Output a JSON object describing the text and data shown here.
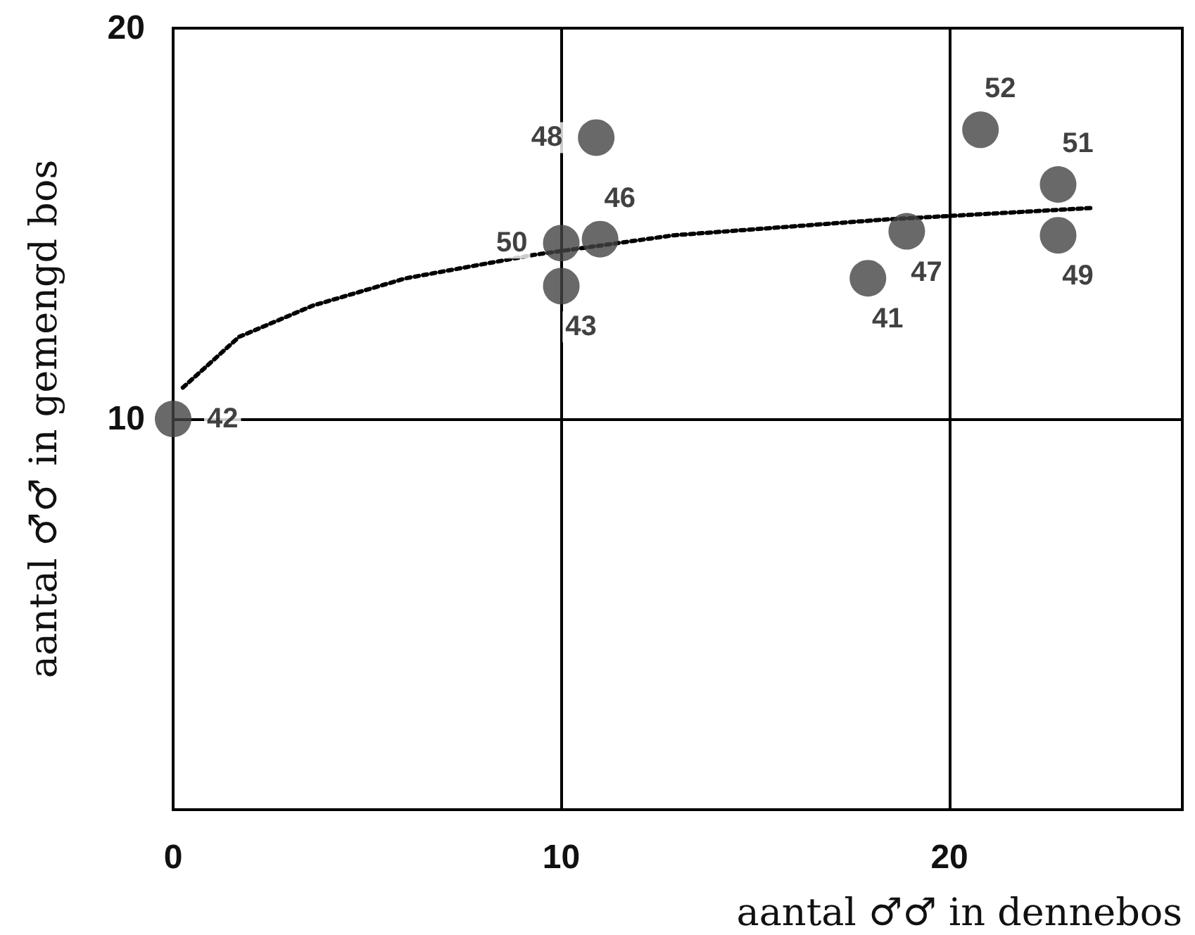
{
  "chart_data": {
    "type": "scatter",
    "xlabel": "aantal ♂♂ in dennebos",
    "ylabel": "aantal ♂♂ in gemengd bos",
    "xlim": [
      0,
      26
    ],
    "ylim": [
      0,
      20
    ],
    "xticks": [
      0,
      10,
      20
    ],
    "yticks": [
      10,
      20
    ],
    "grid": true,
    "marker": "circle",
    "series": [
      {
        "color": "#444444",
        "x": [
          0,
          10.9,
          10,
          11,
          10,
          20.8,
          22.8,
          18.9,
          17.9,
          22.8
        ],
        "values": [
          10,
          17.2,
          14.5,
          14.6,
          13.4,
          17.4,
          16.0,
          14.8,
          13.6,
          14.7
        ]
      },
      {
        "type": "line",
        "line_style": "dotted",
        "marker": "none",
        "color": "#000000",
        "x": [
          0.25,
          1.7,
          3.6,
          6.0,
          9.3,
          12.9,
          18.3,
          23.7
        ],
        "values": [
          10.8,
          12.1,
          12.9,
          13.6,
          14.2,
          14.7,
          15.1,
          15.4
        ]
      }
    ],
    "annotations": [
      {
        "text": "42",
        "x": 0,
        "y": 10
      },
      {
        "text": "48",
        "x": 10.9,
        "y": 17.2
      },
      {
        "text": "50",
        "x": 10,
        "y": 14.5
      },
      {
        "text": "46",
        "x": 11,
        "y": 14.6
      },
      {
        "text": "43",
        "x": 10,
        "y": 13.4
      },
      {
        "text": "52",
        "x": 20.8,
        "y": 17.4
      },
      {
        "text": "51",
        "x": 22.8,
        "y": 16.0
      },
      {
        "text": "47",
        "x": 18.9,
        "y": 14.8
      },
      {
        "text": "41",
        "x": 17.9,
        "y": 13.6
      },
      {
        "text": "49",
        "x": 22.8,
        "y": 14.7
      }
    ]
  }
}
